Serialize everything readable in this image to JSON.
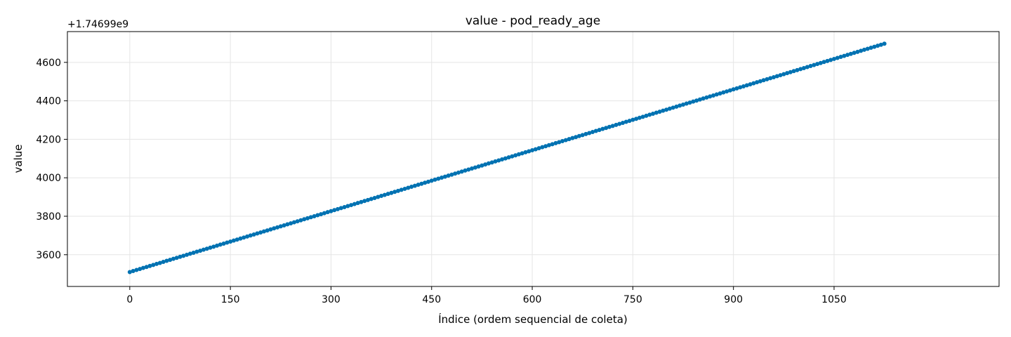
{
  "chart_data": {
    "type": "scatter",
    "title": "value - pod_ready_age",
    "xlabel": "Índice (ordem sequencial de coleta)",
    "ylabel": "value",
    "y_offset_label": "+1.74699e9",
    "xlim": [
      -93,
      1296
    ],
    "ylim": [
      3435,
      4760
    ],
    "xticks": [
      0,
      150,
      300,
      450,
      600,
      750,
      900,
      1050
    ],
    "yticks": [
      3600,
      3800,
      4000,
      4200,
      4400,
      4600
    ],
    "grid": true,
    "series": [
      {
        "color": "#0072b2",
        "marker": "circle",
        "x_start": 0,
        "x_end": 1125,
        "x_step": 5,
        "y_start": 3510,
        "y_end": 4697
      }
    ]
  }
}
